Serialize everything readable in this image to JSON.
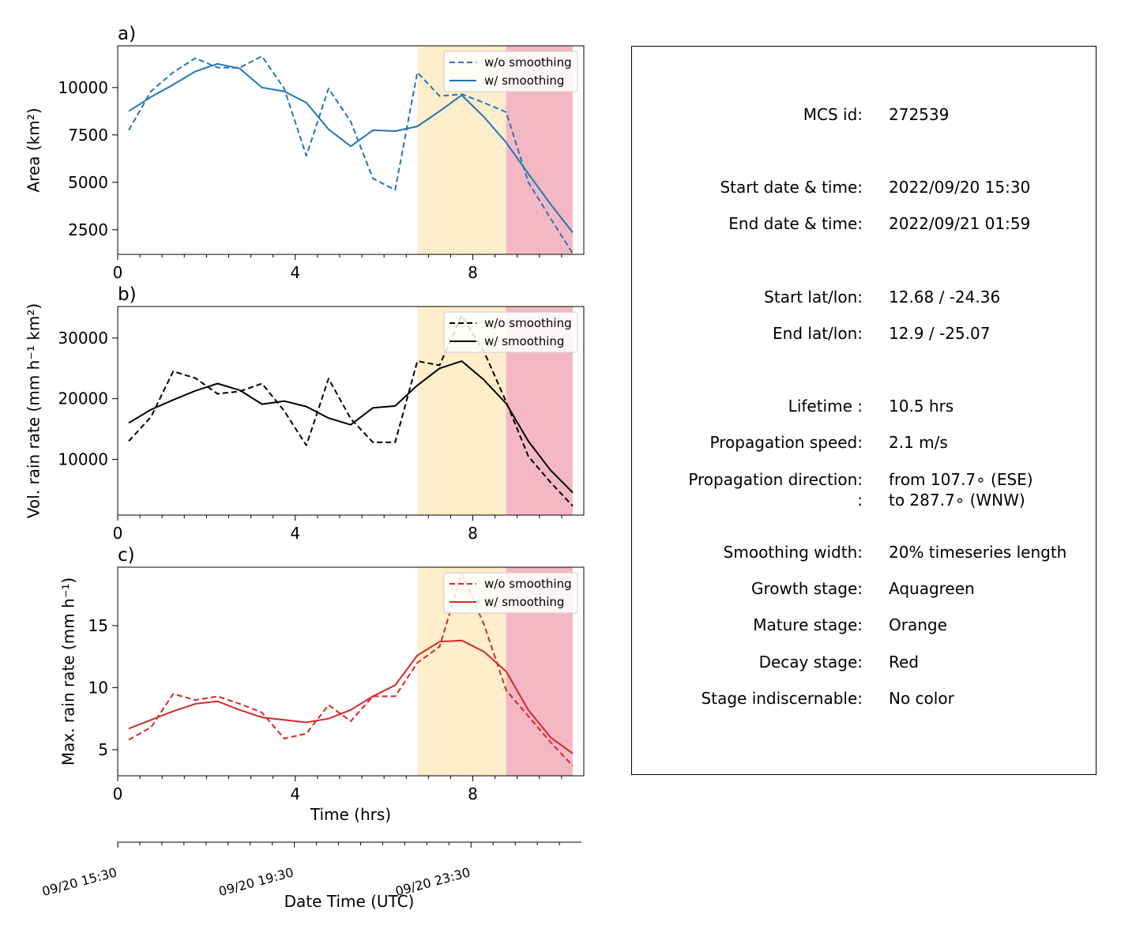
{
  "chart_data": [
    {
      "type": "line",
      "panel_label": "a)",
      "ylabel": "Area  (km²)",
      "xlabel": "",
      "xlim": [
        0,
        10.5
      ],
      "ylim": [
        1200,
        12200
      ],
      "xticks": [
        0,
        4,
        8
      ],
      "yticks": [
        2500,
        5000,
        7500,
        10000
      ],
      "color": "#1f77b4",
      "legend_position": "top-right",
      "x": [
        0.25,
        0.75,
        1.25,
        1.75,
        2.25,
        2.75,
        3.25,
        3.75,
        4.25,
        4.75,
        5.25,
        5.75,
        6.25,
        6.75,
        7.25,
        7.75,
        8.25,
        8.75,
        9.25,
        9.75,
        10.25
      ],
      "series": [
        {
          "name": "w/o smoothing",
          "style": "dashed",
          "values": [
            7750,
            9800,
            10800,
            11550,
            11050,
            11050,
            11650,
            9950,
            6400,
            9950,
            8200,
            5200,
            4600,
            10800,
            9550,
            9650,
            9200,
            8700,
            5000,
            3100,
            1250
          ]
        },
        {
          "name": "w/ smoothing",
          "style": "solid",
          "values": [
            8750,
            9500,
            10150,
            10850,
            11250,
            11000,
            10000,
            9800,
            9200,
            7800,
            6900,
            7750,
            7700,
            7950,
            8750,
            9600,
            8450,
            7100,
            5450,
            3850,
            2350
          ]
        }
      ]
    },
    {
      "type": "line",
      "panel_label": "b)",
      "ylabel": "Vol. rain rate (mm h⁻¹ km²)",
      "xlabel": "",
      "xlim": [
        0,
        10.5
      ],
      "ylim": [
        800,
        35200
      ],
      "xticks": [
        0,
        4,
        8
      ],
      "yticks": [
        10000,
        20000,
        30000
      ],
      "color": "#000000",
      "legend_position": "top-right",
      "x": [
        0.25,
        0.75,
        1.25,
        1.75,
        2.25,
        2.75,
        3.25,
        3.75,
        4.25,
        4.75,
        5.25,
        5.75,
        6.25,
        6.75,
        7.25,
        7.75,
        8.25,
        8.75,
        9.25,
        9.75,
        10.25
      ],
      "series": [
        {
          "name": "w/o smoothing",
          "style": "dashed",
          "values": [
            13000,
            17000,
            24500,
            23400,
            20800,
            21200,
            22500,
            18000,
            12300,
            23300,
            16700,
            12800,
            12800,
            26200,
            25500,
            33700,
            27800,
            19500,
            10500,
            6200,
            2300
          ]
        },
        {
          "name": "w/ smoothing",
          "style": "solid",
          "values": [
            16000,
            18200,
            19800,
            21300,
            22500,
            21400,
            19100,
            19600,
            18700,
            16800,
            15700,
            18500,
            18800,
            22200,
            25000,
            26200,
            23100,
            19200,
            13000,
            8200,
            4500
          ]
        }
      ]
    },
    {
      "type": "line",
      "panel_label": "c)",
      "ylabel": "Max. rain rate  (mm h⁻¹)",
      "xlabel": "Time (hrs)",
      "xlim": [
        0,
        10.5
      ],
      "ylim": [
        2.9,
        19.7
      ],
      "xticks": [
        0,
        4,
        8
      ],
      "yticks": [
        5,
        10,
        15
      ],
      "color": "#d62728",
      "legend_position": "top-right",
      "x": [
        0.25,
        0.75,
        1.25,
        1.75,
        2.25,
        2.75,
        3.25,
        3.75,
        4.25,
        4.75,
        5.25,
        5.75,
        6.25,
        6.75,
        7.25,
        7.75,
        8.25,
        8.75,
        9.25,
        9.75,
        10.25
      ],
      "series": [
        {
          "name": "w/o smoothing",
          "style": "dashed",
          "values": [
            5.8,
            6.8,
            9.5,
            9.0,
            9.3,
            8.7,
            8.0,
            5.9,
            6.3,
            8.6,
            7.3,
            9.3,
            9.3,
            12.0,
            13.3,
            19.2,
            15.1,
            9.8,
            7.7,
            5.6,
            3.7
          ]
        },
        {
          "name": "w/ smoothing",
          "style": "solid",
          "values": [
            6.7,
            7.4,
            8.1,
            8.7,
            8.9,
            8.2,
            7.6,
            7.4,
            7.2,
            7.5,
            8.2,
            9.3,
            10.2,
            12.6,
            13.7,
            13.8,
            12.9,
            11.3,
            8.2,
            6.0,
            4.7
          ]
        }
      ]
    }
  ],
  "stages": {
    "mature": {
      "x_start": 6.75,
      "x_end": 8.75,
      "color": "#ffeecc"
    },
    "decay": {
      "x_start": 8.75,
      "x_end": 10.25,
      "color": "#f4b8c5"
    }
  },
  "datetime_axis": {
    "xlabel": "Date Time (UTC)",
    "ticks": [
      {
        "x": 0,
        "label": "09/20 15:30"
      },
      {
        "x": 4,
        "label": "09/20 19:30"
      },
      {
        "x": 8,
        "label": "09/20 23:30"
      }
    ]
  },
  "info": [
    {
      "label": "MCS id:",
      "value": "272539"
    },
    {
      "label": "Start date & time:",
      "value": "2022/09/20 15:30"
    },
    {
      "label": "End date & time:",
      "value": "2022/09/21 01:59"
    },
    {
      "label": "Start lat/lon:",
      "value": "12.68 / -24.36"
    },
    {
      "label": "End lat/lon:",
      "value": "12.9 / -25.07"
    },
    {
      "label": "Lifetime :",
      "value": "10.5 hrs"
    },
    {
      "label": "Propagation speed:",
      "value": "2.1 m/s"
    },
    {
      "label": "Propagation direction:",
      "value": "from 107.7∘ (ESE)"
    },
    {
      "label": ":",
      "value": "to   287.7∘ (WNW)"
    },
    {
      "label": "Smoothing width:",
      "value": "20% timeseries length"
    },
    {
      "label": "Growth stage:",
      "value": "Aquagreen"
    },
    {
      "label": "Mature stage:",
      "value": "Orange"
    },
    {
      "label": "Decay stage:",
      "value": "Red"
    },
    {
      "label": "Stage indiscernable:",
      "value": "No color"
    }
  ]
}
